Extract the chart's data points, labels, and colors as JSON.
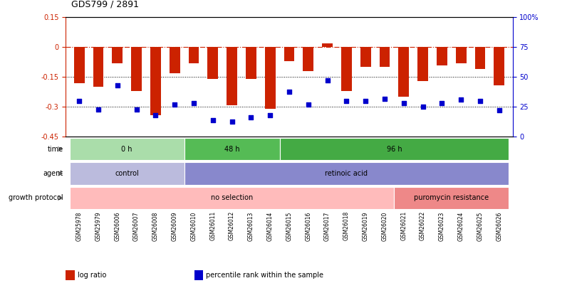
{
  "title": "GDS799 / 2891",
  "samples": [
    "GSM25978",
    "GSM25979",
    "GSM26006",
    "GSM26007",
    "GSM26008",
    "GSM26009",
    "GSM26010",
    "GSM26011",
    "GSM26012",
    "GSM26013",
    "GSM26014",
    "GSM26015",
    "GSM26016",
    "GSM26017",
    "GSM26018",
    "GSM26019",
    "GSM26020",
    "GSM26021",
    "GSM26022",
    "GSM26023",
    "GSM26024",
    "GSM26025",
    "GSM26026"
  ],
  "log_ratio": [
    -0.18,
    -0.2,
    -0.08,
    -0.22,
    -0.34,
    -0.13,
    -0.08,
    -0.16,
    -0.29,
    -0.16,
    -0.31,
    -0.07,
    -0.12,
    0.02,
    -0.22,
    -0.1,
    -0.1,
    -0.25,
    -0.17,
    -0.09,
    -0.08,
    -0.11,
    -0.19
  ],
  "percentile": [
    30,
    23,
    43,
    23,
    18,
    27,
    28,
    14,
    13,
    16,
    18,
    38,
    27,
    47,
    30,
    30,
    32,
    28,
    25,
    28,
    31,
    30,
    22
  ],
  "ylim_left": [
    -0.45,
    0.15
  ],
  "ylim_right": [
    0,
    100
  ],
  "yticks_left": [
    -0.45,
    -0.3,
    -0.15,
    0,
    0.15
  ],
  "yticks_right": [
    0,
    25,
    50,
    75,
    100
  ],
  "dotted_lines": [
    -0.15,
    -0.3
  ],
  "bar_color": "#CC2200",
  "dot_color": "#0000CC",
  "time_groups": [
    {
      "label": "0 h",
      "start": 0,
      "end": 6,
      "color": "#AADDAA"
    },
    {
      "label": "48 h",
      "start": 6,
      "end": 11,
      "color": "#55BB55"
    },
    {
      "label": "96 h",
      "start": 11,
      "end": 23,
      "color": "#44AA44"
    }
  ],
  "agent_groups": [
    {
      "label": "control",
      "start": 0,
      "end": 6,
      "color": "#BBBBDD"
    },
    {
      "label": "retinoic acid",
      "start": 6,
      "end": 23,
      "color": "#8888CC"
    }
  ],
  "growth_groups": [
    {
      "label": "no selection",
      "start": 0,
      "end": 17,
      "color": "#FFBBBB"
    },
    {
      "label": "puromycin resistance",
      "start": 17,
      "end": 23,
      "color": "#EE8888"
    }
  ],
  "row_labels": [
    "time",
    "agent",
    "growth protocol"
  ],
  "legend_items": [
    {
      "label": "log ratio",
      "color": "#CC2200"
    },
    {
      "label": "percentile rank within the sample",
      "color": "#0000CC"
    }
  ]
}
